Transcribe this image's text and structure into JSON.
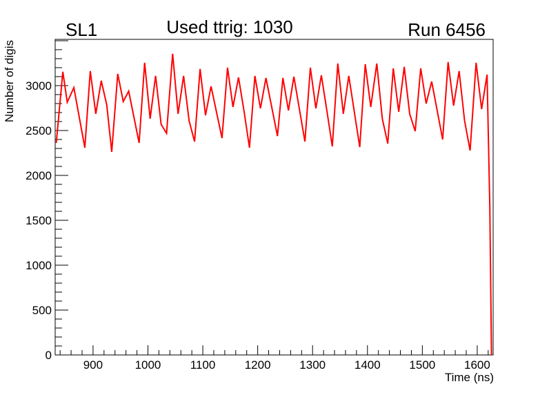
{
  "chart_data": {
    "type": "line",
    "title": "Used ttrig: 1030",
    "label_left": "SL1",
    "label_right": "Run 6456",
    "xlabel": "Time (ns)",
    "ylabel": "Number of digis",
    "xlim": [
      831,
      1629
    ],
    "ylim": [
      0,
      3515
    ],
    "xticks": [
      900,
      1000,
      1100,
      1200,
      1300,
      1400,
      1500,
      1600
    ],
    "yticks": [
      0,
      500,
      1000,
      1500,
      2000,
      2500,
      3000
    ],
    "grid": false,
    "line_color": "#ff0000",
    "series": [
      {
        "name": "digis",
        "x": [
          833,
          845,
          853,
          865,
          885,
          895,
          905,
          915,
          925,
          934,
          945,
          955,
          965,
          984,
          994,
          1004,
          1014,
          1024,
          1034,
          1045,
          1055,
          1065,
          1075,
          1085,
          1095,
          1105,
          1115,
          1135,
          1145,
          1155,
          1165,
          1175,
          1185,
          1195,
          1205,
          1215,
          1236,
          1246,
          1256,
          1266,
          1286,
          1296,
          1306,
          1316,
          1326,
          1336,
          1346,
          1356,
          1366,
          1386,
          1396,
          1406,
          1417,
          1427,
          1437,
          1447,
          1457,
          1467,
          1477,
          1487,
          1497,
          1507,
          1517,
          1537,
          1547,
          1557,
          1567,
          1577,
          1587,
          1598,
          1608,
          1618,
          1623,
          1626
        ],
        "y": [
          2362,
          3154,
          2815,
          2977,
          2308,
          3162,
          2685,
          3054,
          2785,
          2262,
          3131,
          2823,
          2938,
          2362,
          3254,
          2631,
          3108,
          2569,
          2469,
          3354,
          2685,
          3108,
          2608,
          2377,
          3185,
          2669,
          2992,
          2415,
          3200,
          2762,
          3092,
          2723,
          2308,
          3108,
          2746,
          3085,
          2438,
          3085,
          2723,
          3100,
          2377,
          3200,
          2746,
          3115,
          2723,
          2323,
          3246,
          2685,
          3108,
          2315,
          3238,
          2762,
          3246,
          2631,
          2354,
          3192,
          2708,
          3208,
          2685,
          2492,
          3192,
          2800,
          3046,
          2400,
          3262,
          2777,
          3162,
          2608,
          2277,
          3254,
          2738,
          3123,
          1646,
          0
        ]
      }
    ]
  }
}
